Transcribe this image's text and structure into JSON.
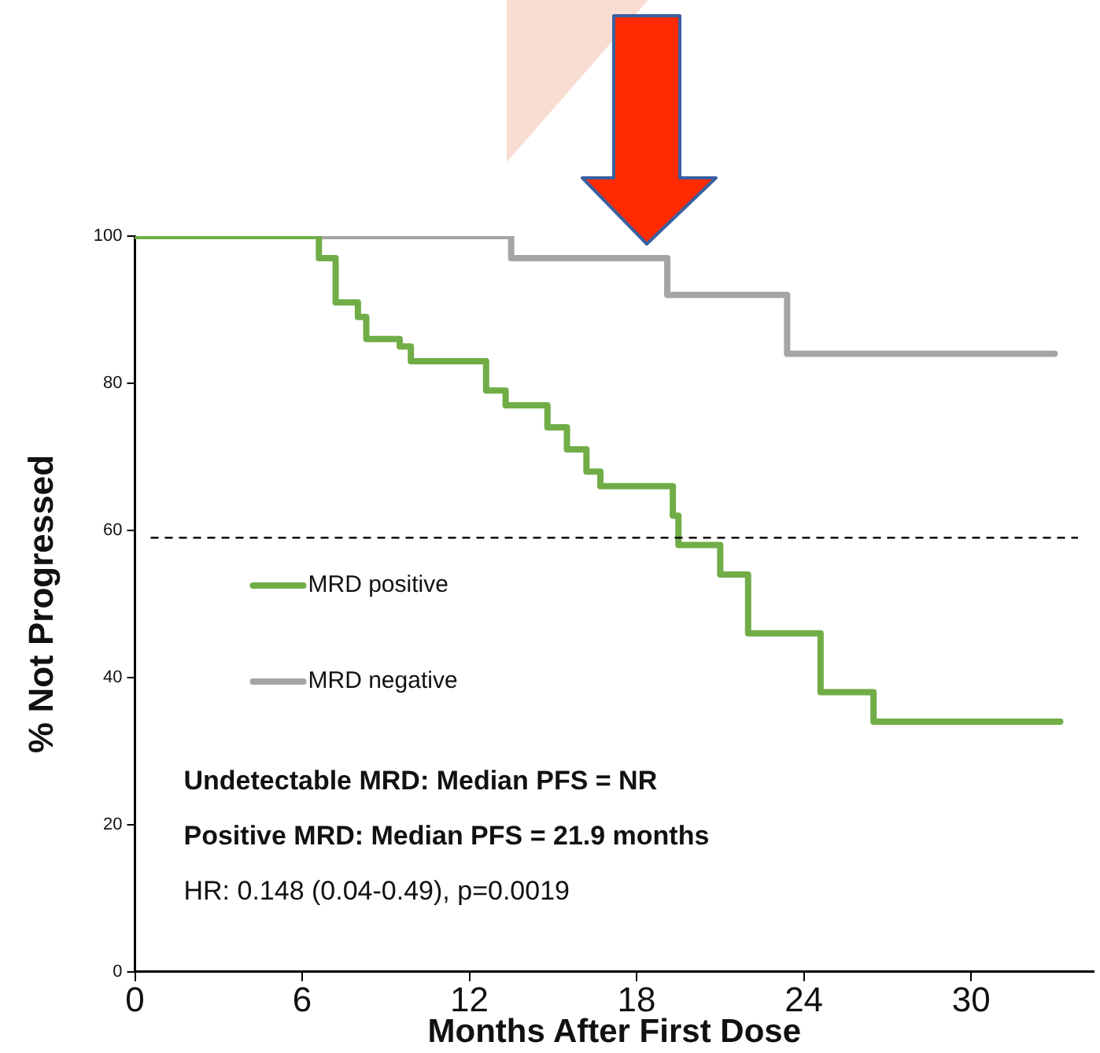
{
  "chart_data": {
    "type": "step",
    "xlabel": "Months After First Dose",
    "ylabel": "% Not Progressed",
    "xlim": [
      0,
      34.4
    ],
    "xticks": [
      0,
      6,
      12,
      18,
      24,
      30
    ],
    "ylim": [
      0,
      100
    ],
    "yticks": [
      0,
      20,
      40,
      60,
      80,
      100
    ],
    "series": [
      {
        "name": "MRD positive",
        "color": "#70ad47",
        "x": [
          0,
          6.6,
          7.2,
          8.0,
          8.3,
          9.5,
          9.9,
          12.6,
          13.3,
          14.8,
          15.5,
          16.2,
          16.7,
          19.3,
          19.5,
          21.0,
          22.0,
          24.6,
          26.5,
          33.2
        ],
        "values": [
          100,
          97,
          91,
          89,
          86,
          85,
          83,
          79,
          77,
          74,
          71,
          68,
          66,
          62,
          58,
          54,
          46,
          38,
          34,
          34
        ]
      },
      {
        "name": "MRD negative",
        "color": "#a5a5a5",
        "x": [
          0,
          13.5,
          19.1,
          23.4,
          33.0
        ],
        "values": [
          100,
          97,
          92,
          84,
          84
        ]
      }
    ],
    "ref_lines": [
      {
        "axis": "y",
        "value": 59,
        "color": "#000000",
        "line_style": "dashed"
      }
    ],
    "annotations": [
      "Undetectable MRD: Median PFS = NR",
      "Positive MRD: Median PFS = 21.9 months",
      "HR: 0.148 (0.04-0.49), p=0.0019"
    ],
    "legend": "left",
    "grid": false
  }
}
